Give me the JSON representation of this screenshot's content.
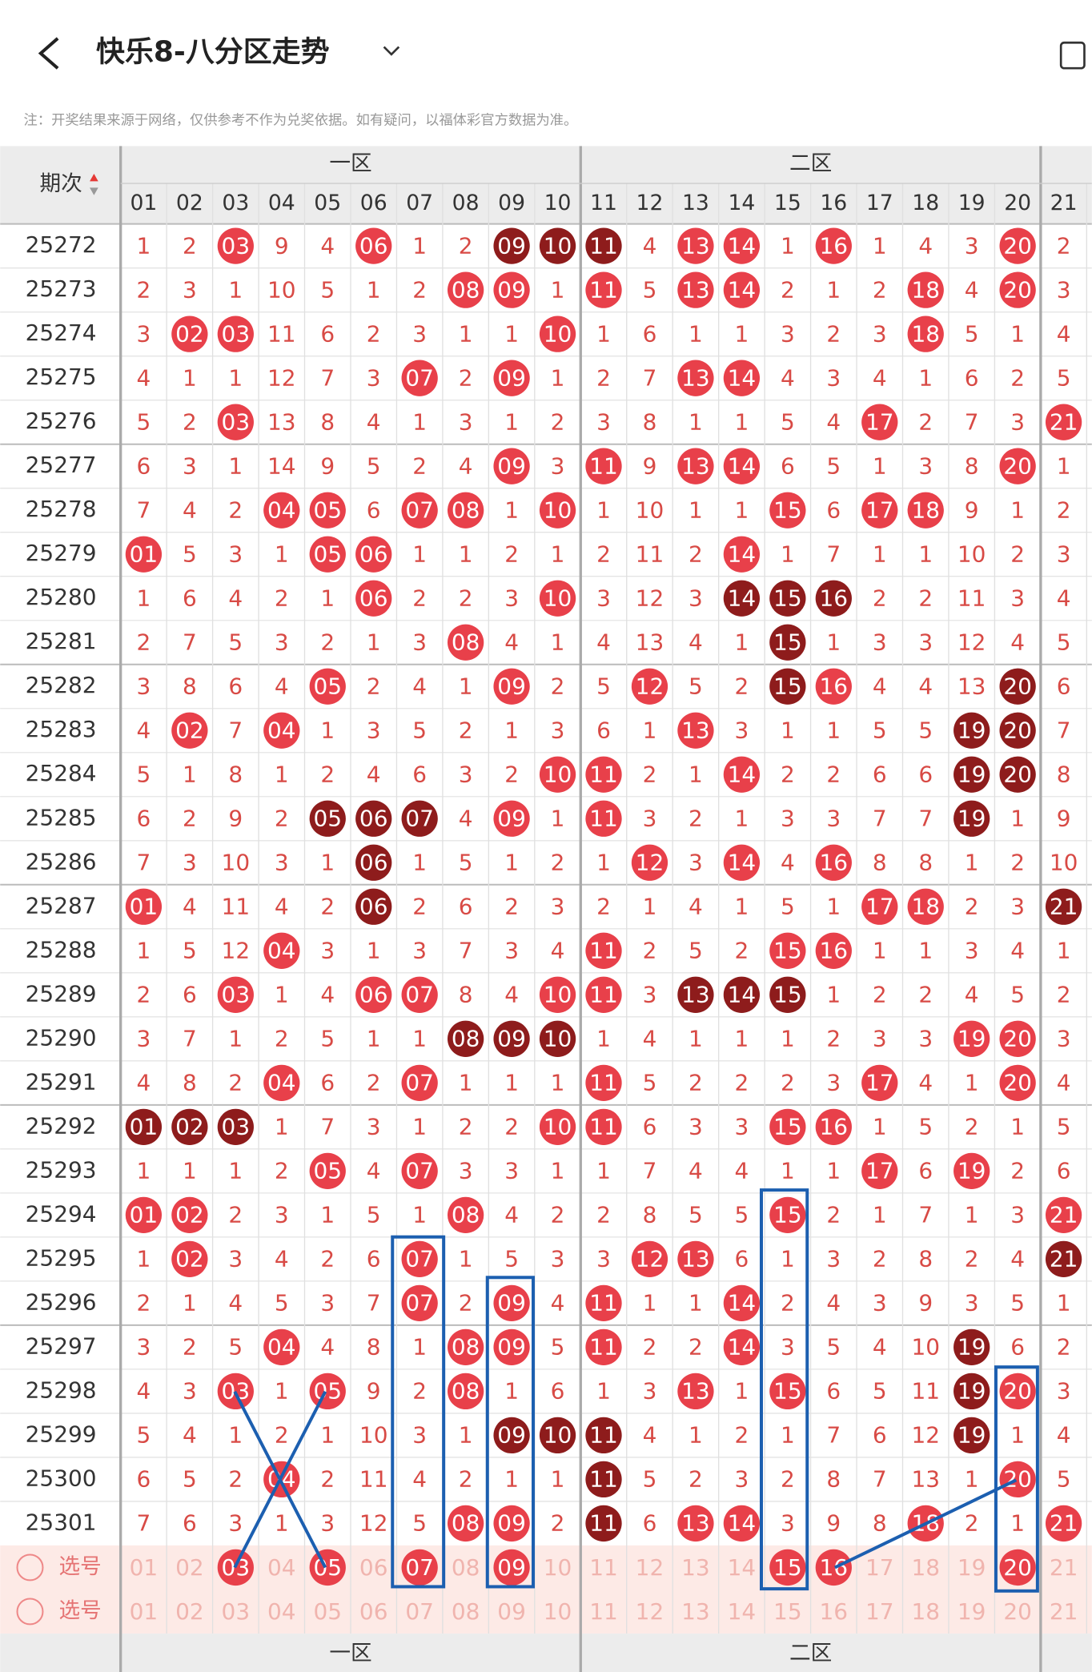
{
  "header": {
    "title": "快乐8-八分区走势"
  },
  "note": "注：开奖结果来源于网络，仅供参考不作为兑奖依据。如有疑问，以福体彩官方数据为准。",
  "table": {
    "period_header": "期次",
    "zones": [
      "一区",
      "二区"
    ],
    "columns": [
      "01",
      "02",
      "03",
      "04",
      "05",
      "06",
      "07",
      "08",
      "09",
      "10",
      "11",
      "12",
      "13",
      "14",
      "15",
      "16",
      "17",
      "18",
      "19",
      "20",
      "21"
    ],
    "rows": [
      {
        "period": "25272",
        "cells": [
          "1",
          "2",
          "03",
          "9",
          "4",
          "06",
          "1",
          "2",
          "09",
          "10",
          "11",
          "4",
          "13",
          "14",
          "1",
          "16",
          "1",
          "4",
          "3",
          "20",
          "2"
        ],
        "hits": [
          3,
          6,
          9,
          10,
          11,
          13,
          14,
          16,
          20
        ],
        "dark": [
          9,
          10,
          11
        ]
      },
      {
        "period": "25273",
        "cells": [
          "2",
          "3",
          "1",
          "10",
          "5",
          "1",
          "2",
          "08",
          "09",
          "1",
          "11",
          "5",
          "13",
          "14",
          "2",
          "1",
          "2",
          "18",
          "4",
          "20",
          "3"
        ],
        "hits": [
          8,
          9,
          11,
          13,
          14,
          18,
          20
        ],
        "dark": []
      },
      {
        "period": "25274",
        "cells": [
          "3",
          "02",
          "03",
          "11",
          "6",
          "2",
          "3",
          "1",
          "1",
          "10",
          "1",
          "6",
          "1",
          "1",
          "3",
          "2",
          "3",
          "18",
          "5",
          "1",
          "4"
        ],
        "hits": [
          2,
          3,
          10,
          18
        ],
        "dark": []
      },
      {
        "period": "25275",
        "cells": [
          "4",
          "1",
          "1",
          "12",
          "7",
          "3",
          "07",
          "2",
          "09",
          "1",
          "2",
          "7",
          "13",
          "14",
          "4",
          "3",
          "4",
          "1",
          "6",
          "2",
          "5"
        ],
        "hits": [
          7,
          9,
          13,
          14
        ],
        "dark": []
      },
      {
        "period": "25276",
        "cells": [
          "5",
          "2",
          "03",
          "13",
          "8",
          "4",
          "1",
          "3",
          "1",
          "2",
          "3",
          "8",
          "1",
          "1",
          "5",
          "4",
          "17",
          "2",
          "7",
          "3",
          "21"
        ],
        "hits": [
          3,
          17,
          21
        ],
        "dark": []
      },
      {
        "period": "25277",
        "cells": [
          "6",
          "3",
          "1",
          "14",
          "9",
          "5",
          "2",
          "4",
          "09",
          "3",
          "11",
          "9",
          "13",
          "14",
          "6",
          "5",
          "1",
          "3",
          "8",
          "20",
          "1"
        ],
        "hits": [
          9,
          11,
          13,
          14,
          20
        ],
        "dark": []
      },
      {
        "period": "25278",
        "cells": [
          "7",
          "4",
          "2",
          "04",
          "05",
          "6",
          "07",
          "08",
          "1",
          "10",
          "1",
          "10",
          "1",
          "1",
          "15",
          "6",
          "17",
          "18",
          "9",
          "1",
          "2"
        ],
        "hits": [
          4,
          5,
          7,
          8,
          10,
          15,
          17,
          18
        ],
        "dark": []
      },
      {
        "period": "25279",
        "cells": [
          "01",
          "5",
          "3",
          "1",
          "05",
          "06",
          "1",
          "1",
          "2",
          "1",
          "2",
          "11",
          "2",
          "14",
          "1",
          "7",
          "1",
          "1",
          "10",
          "2",
          "3"
        ],
        "hits": [
          1,
          5,
          6,
          14
        ],
        "dark": []
      },
      {
        "period": "25280",
        "cells": [
          "1",
          "6",
          "4",
          "2",
          "1",
          "06",
          "2",
          "2",
          "3",
          "10",
          "3",
          "12",
          "3",
          "14",
          "15",
          "16",
          "2",
          "2",
          "11",
          "3",
          "4"
        ],
        "hits": [
          6,
          10,
          14,
          15,
          16
        ],
        "dark": [
          14,
          15,
          16
        ]
      },
      {
        "period": "25281",
        "cells": [
          "2",
          "7",
          "5",
          "3",
          "2",
          "1",
          "3",
          "08",
          "4",
          "1",
          "4",
          "13",
          "4",
          "1",
          "15",
          "1",
          "3",
          "3",
          "12",
          "4",
          "5"
        ],
        "hits": [
          8,
          15
        ],
        "dark": [
          15
        ]
      },
      {
        "period": "25282",
        "cells": [
          "3",
          "8",
          "6",
          "4",
          "05",
          "2",
          "4",
          "1",
          "09",
          "2",
          "5",
          "12",
          "5",
          "2",
          "15",
          "16",
          "4",
          "4",
          "13",
          "20",
          "6"
        ],
        "hits": [
          5,
          9,
          12,
          15,
          16,
          20
        ],
        "dark": [
          15,
          20
        ]
      },
      {
        "period": "25283",
        "cells": [
          "4",
          "02",
          "7",
          "04",
          "1",
          "3",
          "5",
          "2",
          "1",
          "3",
          "6",
          "1",
          "13",
          "3",
          "1",
          "1",
          "5",
          "5",
          "19",
          "20",
          "7"
        ],
        "hits": [
          2,
          4,
          13,
          19,
          20
        ],
        "dark": [
          19,
          20
        ]
      },
      {
        "period": "25284",
        "cells": [
          "5",
          "1",
          "8",
          "1",
          "2",
          "4",
          "6",
          "3",
          "2",
          "10",
          "11",
          "2",
          "1",
          "14",
          "2",
          "2",
          "6",
          "6",
          "19",
          "20",
          "8"
        ],
        "hits": [
          10,
          11,
          14,
          19,
          20
        ],
        "dark": [
          19,
          20
        ]
      },
      {
        "period": "25285",
        "cells": [
          "6",
          "2",
          "9",
          "2",
          "05",
          "06",
          "07",
          "4",
          "09",
          "1",
          "11",
          "3",
          "2",
          "1",
          "3",
          "3",
          "7",
          "7",
          "19",
          "1",
          "9"
        ],
        "hits": [
          5,
          6,
          7,
          9,
          11,
          19
        ],
        "dark": [
          5,
          6,
          7,
          19
        ]
      },
      {
        "period": "25286",
        "cells": [
          "7",
          "3",
          "10",
          "3",
          "1",
          "06",
          "1",
          "5",
          "1",
          "2",
          "1",
          "12",
          "3",
          "14",
          "4",
          "16",
          "8",
          "8",
          "1",
          "2",
          "10"
        ],
        "hits": [
          6,
          12,
          14,
          16
        ],
        "dark": [
          6
        ]
      },
      {
        "period": "25287",
        "cells": [
          "01",
          "4",
          "11",
          "4",
          "2",
          "06",
          "2",
          "6",
          "2",
          "3",
          "2",
          "1",
          "4",
          "1",
          "5",
          "1",
          "17",
          "18",
          "2",
          "3",
          "21"
        ],
        "hits": [
          1,
          6,
          17,
          18,
          21
        ],
        "dark": [
          6,
          21
        ]
      },
      {
        "period": "25288",
        "cells": [
          "1",
          "5",
          "12",
          "04",
          "3",
          "1",
          "3",
          "7",
          "3",
          "4",
          "11",
          "2",
          "5",
          "2",
          "15",
          "16",
          "1",
          "1",
          "3",
          "4",
          "1"
        ],
        "hits": [
          4,
          11,
          15,
          16
        ],
        "dark": []
      },
      {
        "period": "25289",
        "cells": [
          "2",
          "6",
          "03",
          "1",
          "4",
          "06",
          "07",
          "8",
          "4",
          "10",
          "11",
          "3",
          "13",
          "14",
          "15",
          "1",
          "2",
          "2",
          "4",
          "5",
          "2"
        ],
        "hits": [
          3,
          6,
          7,
          10,
          11,
          13,
          14,
          15
        ],
        "dark": [
          13,
          14,
          15
        ]
      },
      {
        "period": "25290",
        "cells": [
          "3",
          "7",
          "1",
          "2",
          "5",
          "1",
          "1",
          "08",
          "09",
          "10",
          "1",
          "4",
          "1",
          "1",
          "1",
          "2",
          "3",
          "3",
          "19",
          "20",
          "3"
        ],
        "hits": [
          8,
          9,
          10,
          19,
          20
        ],
        "dark": [
          8,
          9,
          10
        ]
      },
      {
        "period": "25291",
        "cells": [
          "4",
          "8",
          "2",
          "04",
          "6",
          "2",
          "07",
          "1",
          "1",
          "1",
          "11",
          "5",
          "2",
          "2",
          "2",
          "3",
          "17",
          "4",
          "1",
          "20",
          "4"
        ],
        "hits": [
          4,
          7,
          11,
          17,
          20
        ],
        "dark": []
      },
      {
        "period": "25292",
        "cells": [
          "01",
          "02",
          "03",
          "1",
          "7",
          "3",
          "1",
          "2",
          "2",
          "10",
          "11",
          "6",
          "3",
          "3",
          "15",
          "16",
          "1",
          "5",
          "2",
          "1",
          "5"
        ],
        "hits": [
          1,
          2,
          3,
          10,
          11,
          15,
          16
        ],
        "dark": [
          1,
          2,
          3
        ]
      },
      {
        "period": "25293",
        "cells": [
          "1",
          "1",
          "1",
          "2",
          "05",
          "4",
          "07",
          "3",
          "3",
          "1",
          "1",
          "7",
          "4",
          "4",
          "1",
          "1",
          "17",
          "6",
          "19",
          "2",
          "6"
        ],
        "hits": [
          5,
          7,
          17,
          19
        ],
        "dark": []
      },
      {
        "period": "25294",
        "cells": [
          "01",
          "02",
          "2",
          "3",
          "1",
          "5",
          "1",
          "08",
          "4",
          "2",
          "2",
          "8",
          "5",
          "5",
          "15",
          "2",
          "1",
          "7",
          "1",
          "3",
          "21"
        ],
        "hits": [
          1,
          2,
          8,
          15,
          21
        ],
        "dark": []
      },
      {
        "period": "25295",
        "cells": [
          "1",
          "02",
          "3",
          "4",
          "2",
          "6",
          "07",
          "1",
          "5",
          "3",
          "3",
          "12",
          "13",
          "6",
          "1",
          "3",
          "2",
          "8",
          "2",
          "4",
          "21"
        ],
        "hits": [
          2,
          7,
          12,
          13,
          21
        ],
        "dark": [
          21
        ]
      },
      {
        "period": "25296",
        "cells": [
          "2",
          "1",
          "4",
          "5",
          "3",
          "7",
          "07",
          "2",
          "09",
          "4",
          "11",
          "1",
          "1",
          "14",
          "2",
          "4",
          "3",
          "9",
          "3",
          "5",
          "1"
        ],
        "hits": [
          7,
          9,
          11,
          14
        ],
        "dark": []
      },
      {
        "period": "25297",
        "cells": [
          "3",
          "2",
          "5",
          "04",
          "4",
          "8",
          "1",
          "08",
          "09",
          "5",
          "11",
          "2",
          "2",
          "14",
          "3",
          "5",
          "4",
          "10",
          "19",
          "6",
          "2"
        ],
        "hits": [
          4,
          8,
          9,
          11,
          14,
          19
        ],
        "dark": [
          19
        ]
      },
      {
        "period": "25298",
        "cells": [
          "4",
          "3",
          "03",
          "1",
          "05",
          "9",
          "2",
          "08",
          "1",
          "6",
          "1",
          "3",
          "13",
          "1",
          "15",
          "6",
          "5",
          "11",
          "19",
          "20",
          "3"
        ],
        "hits": [
          3,
          5,
          8,
          13,
          15,
          19,
          20
        ],
        "dark": [
          19
        ]
      },
      {
        "period": "25299",
        "cells": [
          "5",
          "4",
          "1",
          "2",
          "1",
          "10",
          "3",
          "1",
          "09",
          "10",
          "11",
          "4",
          "1",
          "2",
          "1",
          "7",
          "6",
          "12",
          "19",
          "1",
          "4"
        ],
        "hits": [
          9,
          10,
          11,
          19
        ],
        "dark": [
          9,
          10,
          11,
          19
        ]
      },
      {
        "period": "25300",
        "cells": [
          "6",
          "5",
          "2",
          "04",
          "2",
          "11",
          "4",
          "2",
          "1",
          "1",
          "11",
          "5",
          "2",
          "3",
          "2",
          "8",
          "7",
          "13",
          "1",
          "20",
          "5"
        ],
        "hits": [
          4,
          11,
          20
        ],
        "dark": [
          11
        ]
      },
      {
        "period": "25301",
        "cells": [
          "7",
          "6",
          "3",
          "1",
          "3",
          "12",
          "5",
          "08",
          "09",
          "2",
          "11",
          "6",
          "13",
          "14",
          "3",
          "9",
          "8",
          "18",
          "2",
          "1",
          "21"
        ],
        "hits": [
          8,
          9,
          11,
          13,
          14,
          18,
          21
        ],
        "dark": [
          11
        ]
      }
    ],
    "pick_label": "选号",
    "picks": [
      [
        3,
        5,
        7,
        9,
        15,
        16,
        20
      ],
      []
    ]
  }
}
